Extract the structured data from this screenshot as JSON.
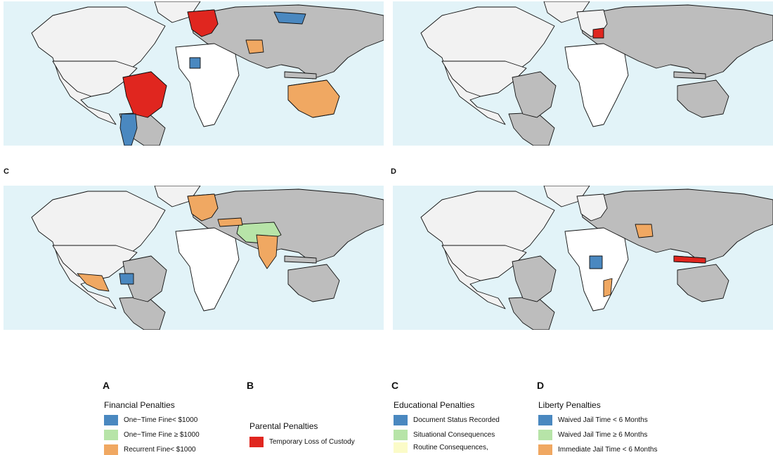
{
  "panels": {
    "a": {
      "letter": ""
    },
    "b": {
      "letter": ""
    },
    "c": {
      "letter": "C"
    },
    "d": {
      "letter": "D"
    }
  },
  "colors": {
    "ocean": "#e2f3f8",
    "no_data_land": "#f2f2f2",
    "no_penalty_land": "#bdbdbd",
    "white_land": "#ffffff",
    "blue": "#4a88c0",
    "green": "#b7e4a8",
    "orange": "#f0a862",
    "red": "#e0261f",
    "yellow": "#fbfbc8"
  },
  "legends": {
    "a": {
      "letter": "A",
      "title": "Financial Penalties",
      "items": [
        {
          "label": "One−Time Fine< $1000",
          "color": "#4a88c0"
        },
        {
          "label": "One−Time Fine ≥ $1000",
          "color": "#b7e4a8"
        },
        {
          "label": "Recurrent Fine< $1000",
          "color": "#f0a862"
        }
      ]
    },
    "b": {
      "letter": "B",
      "title": "Parental Penalties",
      "items": [
        {
          "label": "Temporary Loss of Custody",
          "color": "#e0261f"
        }
      ]
    },
    "c": {
      "letter": "C",
      "title": "Educational Penalties",
      "items": [
        {
          "label": "Document Status Recorded",
          "color": "#4a88c0"
        },
        {
          "label": "Situational Consequences",
          "color": "#b7e4a8"
        },
        {
          "label": "Routine Consequences,",
          "color": "#fbfbc8"
        }
      ]
    },
    "d": {
      "letter": "D",
      "title": "Liberty Penalties",
      "items": [
        {
          "label": "Waived Jail Time < 6 Months",
          "color": "#4a88c0"
        },
        {
          "label": "Waived Jail Time ≥ 6 Months",
          "color": "#b7e4a8"
        },
        {
          "label": "Immediate Jail Time < 6 Months",
          "color": "#f0a862"
        }
      ]
    }
  },
  "map_highlights": {
    "a": {
      "brazil": "#e0261f",
      "argentina": "#4a88c0",
      "australia": "#f0a862",
      "central_europe": "#e0261f",
      "mongolia": "#4a88c0",
      "nigeria": "#4a88c0",
      "pakistan": "#f0a862"
    },
    "b": {
      "balkans": "#e0261f"
    },
    "c": {
      "kazakhstan": "#b7e4a8",
      "mexico": "#f0a862",
      "venezuela": "#4a88c0",
      "india": "#f0a862",
      "turkey": "#f0a862",
      "europe": "#f0a862"
    },
    "d": {
      "congo": "#4a88c0",
      "pakistan": "#f0a862",
      "indonesia": "#e0261f",
      "mozambique": "#f0a862"
    }
  }
}
